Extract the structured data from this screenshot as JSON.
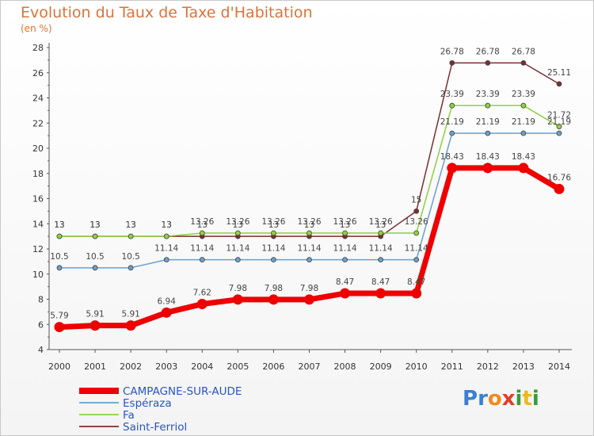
{
  "chart_data": {
    "type": "line",
    "title": "Evolution du Taux de Taxe d'Habitation",
    "unit_label": "(en %)",
    "x": [
      "2000",
      "2001",
      "2002",
      "2003",
      "2004",
      "2005",
      "2006",
      "2007",
      "2008",
      "2009",
      "2010",
      "2011",
      "2012",
      "2013",
      "2014"
    ],
    "ylim": [
      4,
      28
    ],
    "yticks": [
      4,
      6,
      8,
      10,
      12,
      14,
      16,
      18,
      20,
      22,
      24,
      26,
      28
    ],
    "grid": false,
    "legend_position": "bottom-left",
    "series": [
      {
        "name": "CAMPAGNE-SUR-AUDE",
        "color": "#ee0000",
        "values": [
          5.79,
          5.91,
          5.91,
          6.94,
          7.62,
          7.98,
          7.98,
          7.98,
          8.47,
          8.47,
          8.47,
          18.43,
          18.43,
          18.43,
          16.76
        ],
        "labels": [
          "5.79",
          "5.91",
          "5.91",
          "6.94",
          "7.62",
          "7.98",
          "7.98",
          "7.98",
          "8.47",
          "8.47",
          "8.47",
          "18.43",
          "18.43",
          "18.43",
          "16.76"
        ]
      },
      {
        "name": "Espéraza",
        "color": "#6a9fcb",
        "values": [
          10.5,
          10.5,
          10.5,
          11.14,
          11.14,
          11.14,
          11.14,
          11.14,
          11.14,
          11.14,
          11.14,
          21.19,
          21.19,
          21.19,
          21.19
        ],
        "labels": [
          "10.5",
          "10.5",
          "10.5",
          "11.14",
          "11.14",
          "11.14",
          "11.14",
          "11.14",
          "11.14",
          "11.14",
          "11.14",
          "21.19",
          "21.19",
          "21.19",
          "21.19"
        ]
      },
      {
        "name": "Fa",
        "color": "#8fd040",
        "values": [
          13,
          13,
          13,
          13,
          13.26,
          13.26,
          13.26,
          13.26,
          13.26,
          13.26,
          13.26,
          23.39,
          23.39,
          23.39,
          21.72
        ],
        "labels": [
          "13",
          "13",
          "13",
          "13",
          "13.26",
          "13.26",
          "13.26",
          "13.26",
          "13.26",
          "13.26",
          "13.26",
          "23.39",
          "23.39",
          "23.39",
          "21.72"
        ]
      },
      {
        "name": "Saint-Ferriol",
        "color": "#7a2e2e",
        "values": [
          13,
          13,
          13,
          13,
          13,
          13,
          13,
          13,
          13,
          13,
          15,
          26.78,
          26.78,
          26.78,
          25.11
        ],
        "labels": [
          "13",
          "13",
          "13",
          "13",
          "13",
          "13",
          "13",
          "13",
          "13",
          "13",
          "15",
          "26.78",
          "26.78",
          "26.78",
          "25.11"
        ]
      }
    ]
  },
  "brand": {
    "letters": [
      {
        "ch": "P",
        "color": "#3a7fd0"
      },
      {
        "ch": "r",
        "color": "#3a7fd0"
      },
      {
        "ch": "o",
        "color": "#f08a1c"
      },
      {
        "ch": "x",
        "color": "#e83a2a"
      },
      {
        "ch": "i",
        "color": "#3a9a3a"
      },
      {
        "ch": "t",
        "color": "#f0b81c"
      },
      {
        "ch": "i",
        "color": "#3a9a3a"
      }
    ]
  }
}
